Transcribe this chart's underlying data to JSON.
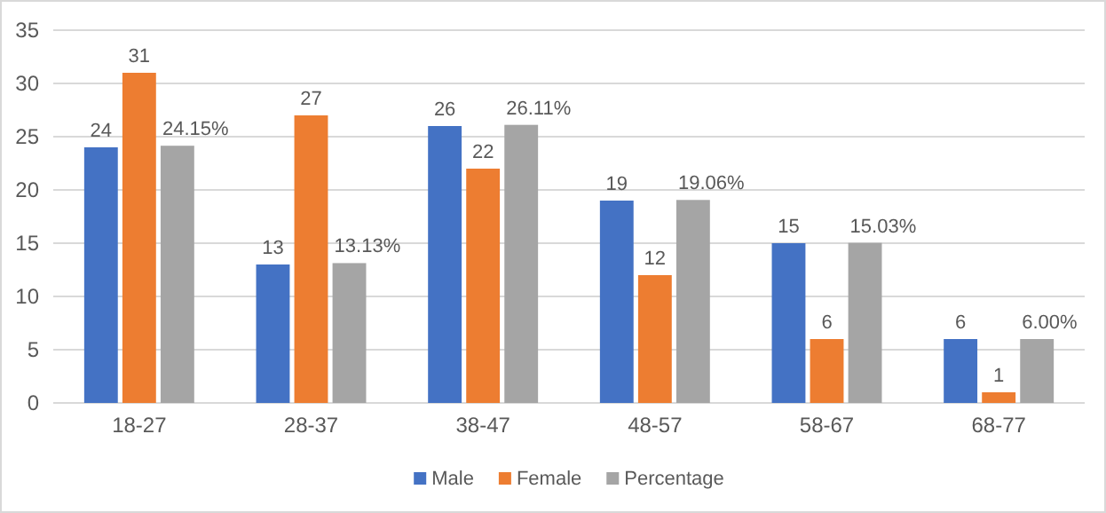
{
  "chart_data": {
    "type": "bar",
    "categories": [
      "18-27",
      "28-37",
      "38-47",
      "48-57",
      "58-67",
      "68-77"
    ],
    "series": [
      {
        "name": "Male",
        "color": "#4472c4",
        "values": [
          24,
          13,
          26,
          19,
          15,
          6
        ],
        "value_labels": [
          "24",
          "13",
          "26",
          "19",
          "15",
          "6"
        ]
      },
      {
        "name": "Female",
        "color": "#ed7d31",
        "values": [
          31,
          27,
          22,
          12,
          6,
          1
        ],
        "value_labels": [
          "31",
          "27",
          "22",
          "12",
          "6",
          "1"
        ]
      },
      {
        "name": "Percentage",
        "color": "#a5a5a5",
        "values": [
          24.15,
          13.13,
          26.11,
          19.06,
          15.03,
          6.0
        ],
        "value_labels": [
          "24.15%",
          "13.13%",
          "26.11%",
          "19.06%",
          "15.03%",
          "6.00%"
        ]
      }
    ],
    "ylim": [
      0,
      35
    ],
    "yticks": [
      0,
      5,
      10,
      15,
      20,
      25,
      30,
      35
    ],
    "grid": "y",
    "legend": "bottom"
  }
}
